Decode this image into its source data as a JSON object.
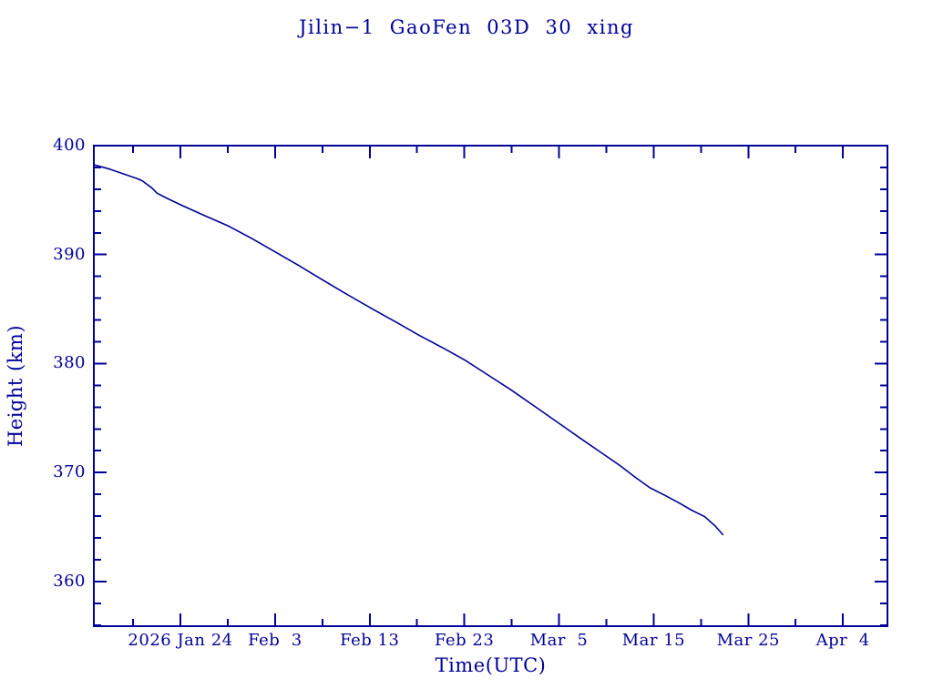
{
  "colors": {
    "ink": "#000099",
    "background": "#ffffff"
  },
  "chart_data": {
    "type": "line",
    "title": "Jilin−1 GaoFen 03D 30 xing",
    "xlabel": "Time(UTC)",
    "ylabel": "Height (km)",
    "x_domain_days": [
      14.85,
      98.7
    ],
    "ylim": [
      355.9,
      400
    ],
    "grid": false,
    "legend": "none",
    "y_major_ticks": [
      {
        "km": 400,
        "label": "400"
      },
      {
        "km": 390,
        "label": "390"
      },
      {
        "km": 380,
        "label": "380"
      },
      {
        "km": 370,
        "label": "370"
      },
      {
        "km": 360,
        "label": "360"
      }
    ],
    "y_minor_step_km": 2,
    "x_major_ticks": [
      {
        "day": 24,
        "label": "2026 Jan 24"
      },
      {
        "day": 34,
        "label": "Feb  3"
      },
      {
        "day": 44,
        "label": "Feb 13"
      },
      {
        "day": 54,
        "label": "Feb 23"
      },
      {
        "day": 64,
        "label": "Mar  5"
      },
      {
        "day": 74,
        "label": "Mar 15"
      },
      {
        "day": 84,
        "label": "Mar 25"
      },
      {
        "day": 94,
        "label": "Apr  4"
      }
    ],
    "x_minor_days": [
      19,
      29,
      39,
      49,
      59,
      69,
      79,
      89
    ],
    "series": [
      {
        "name": "Jilin-1 GaoFen 03D 30 xing height",
        "points_day_km": [
          [
            14.85,
            398.25
          ],
          [
            16.5,
            397.85
          ],
          [
            18.0,
            397.4
          ],
          [
            19.5,
            396.95
          ],
          [
            20.0,
            396.75
          ],
          [
            21.0,
            396.1
          ],
          [
            21.5,
            395.65
          ],
          [
            22.5,
            395.2
          ],
          [
            24.2,
            394.5
          ],
          [
            26.5,
            393.6
          ],
          [
            29.0,
            392.65
          ],
          [
            31.5,
            391.5
          ],
          [
            34.1,
            390.2
          ],
          [
            36.5,
            389.0
          ],
          [
            38.6,
            387.9
          ],
          [
            41.5,
            386.4
          ],
          [
            44.4,
            384.95
          ],
          [
            47.0,
            383.7
          ],
          [
            49.2,
            382.6
          ],
          [
            51.7,
            381.45
          ],
          [
            54.0,
            380.35
          ],
          [
            56.5,
            378.95
          ],
          [
            58.9,
            377.6
          ],
          [
            61.8,
            375.85
          ],
          [
            64.6,
            374.15
          ],
          [
            66.5,
            373.0
          ],
          [
            68.5,
            371.8
          ],
          [
            70.5,
            370.6
          ],
          [
            72.0,
            369.6
          ],
          [
            73.6,
            368.6
          ],
          [
            75.2,
            367.9
          ],
          [
            76.7,
            367.2
          ],
          [
            78.0,
            366.55
          ],
          [
            79.4,
            365.95
          ],
          [
            80.5,
            365.1
          ],
          [
            81.3,
            364.3
          ]
        ]
      }
    ]
  }
}
